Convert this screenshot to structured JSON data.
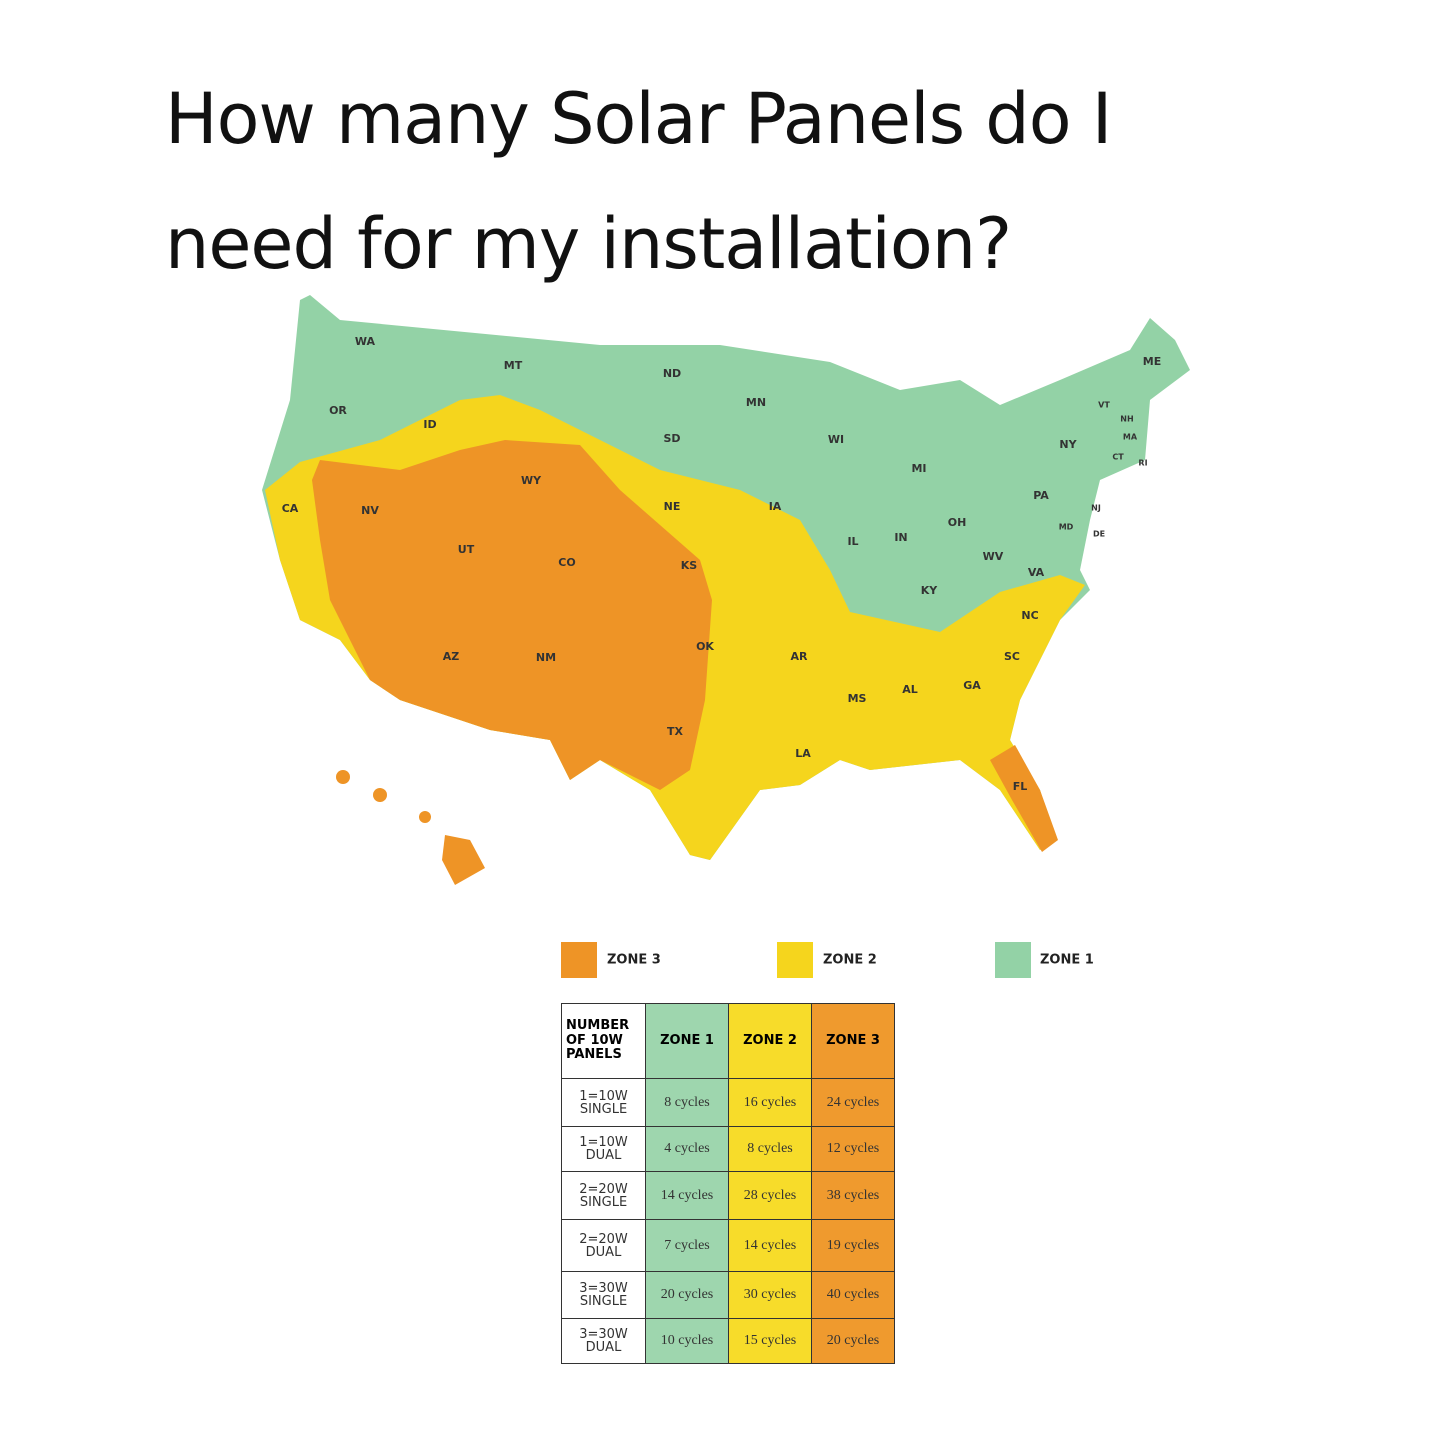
{
  "title_lines": [
    "How many Solar Panels do I",
    "need for my installation?"
  ],
  "map": {
    "states": [
      "WA",
      "MT",
      "ND",
      "MN",
      "ME",
      "OR",
      "ID",
      "SD",
      "WI",
      "VT",
      "NH",
      "MA",
      "NY",
      "CT",
      "RI",
      "MI",
      "WY",
      "PA",
      "NE",
      "IA",
      "NJ",
      "CA",
      "NV",
      "OH",
      "MD",
      "DE",
      "IL",
      "IN",
      "UT",
      "WV",
      "CO",
      "KS",
      "VA",
      "KY",
      "NC",
      "OK",
      "AR",
      "SC",
      "AZ",
      "NM",
      "GA",
      "AL",
      "MS",
      "TX",
      "LA",
      "FL"
    ]
  },
  "legend": [
    "ZONE 3",
    "ZONE 2",
    "ZONE 1"
  ],
  "table": {
    "header": [
      "NUMBER OF 10W PANELS",
      "ZONE 1",
      "ZONE 2",
      "ZONE 3"
    ],
    "rows": [
      [
        "1=10W SINGLE",
        "8 cycles",
        "16 cycles",
        "24 cycles"
      ],
      [
        "1=10W DUAL",
        "4 cycles",
        "8 cycles",
        "12 cycles"
      ],
      [
        "2=20W SINGLE",
        "14 cycles",
        "28 cycles",
        "38 cycles"
      ],
      [
        "2=20W DUAL",
        "7 cycles",
        "14 cycles",
        "19 cycles"
      ],
      [
        "3=30W SINGLE",
        "20 cycles",
        "30 cycles",
        "40 cycles"
      ],
      [
        "3=30W DUAL",
        "10 cycles",
        "15 cycles",
        "20 cycles"
      ]
    ]
  }
}
